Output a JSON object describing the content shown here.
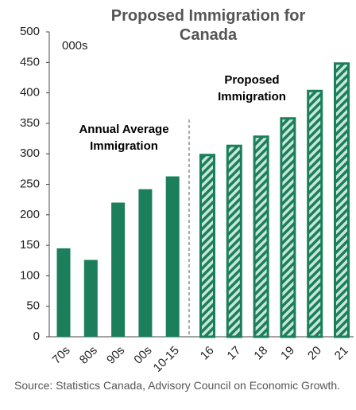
{
  "chart_data": {
    "type": "bar",
    "title": "Proposed Immigration for Canada",
    "unit_label": "000s",
    "categories": [
      "70s",
      "80s",
      "90s",
      "00s",
      "10-15",
      "16",
      "17",
      "18",
      "19",
      "20",
      "21"
    ],
    "series": [
      {
        "name": "Annual Average Immigration",
        "color": "#1a7f5a",
        "values": [
          145,
          126,
          220,
          242,
          263,
          null,
          null,
          null,
          null,
          null,
          null
        ]
      },
      {
        "name": "Proposed Immigration",
        "color": "#1a7f5a",
        "hatch": true,
        "values": [
          null,
          null,
          null,
          null,
          null,
          300,
          315,
          330,
          360,
          405,
          450
        ]
      }
    ],
    "ylim": [
      0,
      500
    ],
    "yticks": [
      0,
      50,
      100,
      150,
      200,
      250,
      300,
      350,
      400,
      450,
      500
    ],
    "source": "Source: Statistics Canada, Advisory Council on Economic Growth."
  }
}
